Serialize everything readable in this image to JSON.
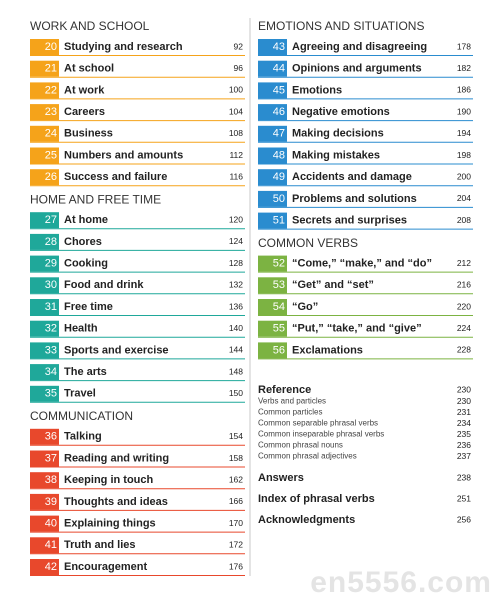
{
  "columns": [
    {
      "sections": [
        {
          "heading": "WORK AND SCHOOL",
          "color": "#f5a31a",
          "entries": [
            {
              "number": 20,
              "title": "Studying and research",
              "page": 92
            },
            {
              "number": 21,
              "title": "At school",
              "page": 96
            },
            {
              "number": 22,
              "title": "At work",
              "page": 100
            },
            {
              "number": 23,
              "title": "Careers",
              "page": 104
            },
            {
              "number": 24,
              "title": "Business",
              "page": 108
            },
            {
              "number": 25,
              "title": "Numbers and amounts",
              "page": 112
            },
            {
              "number": 26,
              "title": "Success and failure",
              "page": 116
            }
          ]
        },
        {
          "heading": "HOME AND FREE TIME",
          "color": "#1fa89a",
          "entries": [
            {
              "number": 27,
              "title": "At home",
              "page": 120
            },
            {
              "number": 28,
              "title": "Chores",
              "page": 124
            },
            {
              "number": 29,
              "title": "Cooking",
              "page": 128
            },
            {
              "number": 30,
              "title": "Food and drink",
              "page": 132
            },
            {
              "number": 31,
              "title": "Free time",
              "page": 136
            },
            {
              "number": 32,
              "title": "Health",
              "page": 140
            },
            {
              "number": 33,
              "title": "Sports and exercise",
              "page": 144
            },
            {
              "number": 34,
              "title": "The arts",
              "page": 148
            },
            {
              "number": 35,
              "title": "Travel",
              "page": 150
            }
          ]
        },
        {
          "heading": "COMMUNICATION",
          "color": "#e8482c",
          "entries": [
            {
              "number": 36,
              "title": "Talking",
              "page": 154
            },
            {
              "number": 37,
              "title": "Reading and writing",
              "page": 158
            },
            {
              "number": 38,
              "title": "Keeping in touch",
              "page": 162
            },
            {
              "number": 39,
              "title": "Thoughts and ideas",
              "page": 166
            },
            {
              "number": 40,
              "title": "Explaining things",
              "page": 170
            },
            {
              "number": 41,
              "title": "Truth and lies",
              "page": 172
            },
            {
              "number": 42,
              "title": "Encouragement",
              "page": 176
            }
          ]
        }
      ]
    },
    {
      "sections": [
        {
          "heading": "EMOTIONS AND SITUATIONS",
          "color": "#2a8ccf",
          "entries": [
            {
              "number": 43,
              "title": "Agreeing and disagreeing",
              "page": 178
            },
            {
              "number": 44,
              "title": "Opinions and arguments",
              "page": 182
            },
            {
              "number": 45,
              "title": "Emotions",
              "page": 186
            },
            {
              "number": 46,
              "title": "Negative emotions",
              "page": 190
            },
            {
              "number": 47,
              "title": "Making decisions",
              "page": 194
            },
            {
              "number": 48,
              "title": "Making mistakes",
              "page": 198
            },
            {
              "number": 49,
              "title": "Accidents and damage",
              "page": 200
            },
            {
              "number": 50,
              "title": "Problems and solutions",
              "page": 204
            },
            {
              "number": 51,
              "title": "Secrets and surprises",
              "page": 208
            }
          ]
        },
        {
          "heading": "COMMON VERBS",
          "color": "#7cb342",
          "entries": [
            {
              "number": 52,
              "title": "“Come,” “make,” and “do”",
              "page": 212
            },
            {
              "number": 53,
              "title": "“Get” and “set”",
              "page": 216
            },
            {
              "number": 54,
              "title": "“Go”",
              "page": 220
            },
            {
              "number": 55,
              "title": "“Put,” “take,” and “give”",
              "page": 224
            },
            {
              "number": 56,
              "title": "Exclamations",
              "page": 228
            }
          ]
        }
      ]
    }
  ],
  "back_matter": [
    {
      "title": "Reference",
      "page": 230,
      "items": [
        {
          "title": "Verbs and particles",
          "page": 230
        },
        {
          "title": "Common particles",
          "page": 231
        },
        {
          "title": "Common separable phrasal verbs",
          "page": 234
        },
        {
          "title": "Common inseparable phrasal verbs",
          "page": 235
        },
        {
          "title": "Common phrasal nouns",
          "page": 236
        },
        {
          "title": "Common phrasal adjectives",
          "page": 237
        }
      ]
    },
    {
      "title": "Answers",
      "page": 238,
      "items": []
    },
    {
      "title": "Index of phrasal verbs",
      "page": 251,
      "items": []
    },
    {
      "title": "Acknowledgments",
      "page": 256,
      "items": []
    }
  ],
  "watermark": "en5556.com"
}
